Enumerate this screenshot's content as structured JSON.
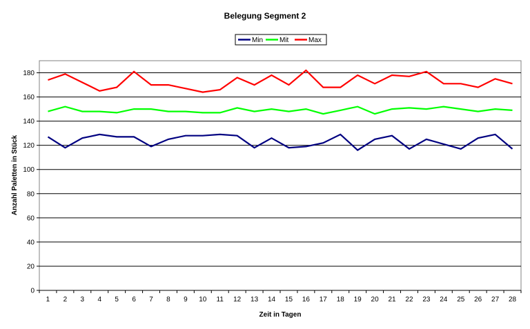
{
  "chart_data": {
    "type": "line",
    "title": "Belegung Segment 2",
    "xlabel": "Zeit in Tagen",
    "ylabel": "Anzahl Paletten in Stück",
    "ylim": [
      0,
      190
    ],
    "yticks": [
      0,
      20,
      40,
      60,
      80,
      100,
      120,
      140,
      160,
      180
    ],
    "grid": true,
    "legend_position": "top",
    "categories": [
      "1",
      "2",
      "3",
      "4",
      "5",
      "6",
      "7",
      "8",
      "9",
      "10",
      "11",
      "12",
      "13",
      "14",
      "15",
      "16",
      "17",
      "18",
      "19",
      "20",
      "21",
      "22",
      "23",
      "24",
      "25",
      "26",
      "27",
      "28"
    ],
    "series": [
      {
        "name": "Min",
        "color": "#000080",
        "values": [
          127,
          118,
          126,
          129,
          127,
          127,
          119,
          125,
          128,
          128,
          129,
          128,
          118,
          126,
          118,
          119,
          122,
          129,
          116,
          125,
          128,
          117,
          125,
          121,
          117,
          126,
          129,
          117
        ]
      },
      {
        "name": "Mit",
        "color": "#00ff00",
        "values": [
          148,
          152,
          148,
          148,
          147,
          150,
          150,
          148,
          148,
          147,
          147,
          151,
          148,
          150,
          148,
          150,
          146,
          149,
          152,
          146,
          150,
          151,
          150,
          152,
          150,
          148,
          150,
          149
        ]
      },
      {
        "name": "Max",
        "color": "#ff0000",
        "values": [
          174,
          179,
          172,
          165,
          168,
          181,
          170,
          170,
          167,
          164,
          166,
          176,
          170,
          178,
          170,
          182,
          168,
          168,
          178,
          171,
          178,
          177,
          181,
          171,
          171,
          168,
          175,
          171
        ]
      }
    ]
  }
}
